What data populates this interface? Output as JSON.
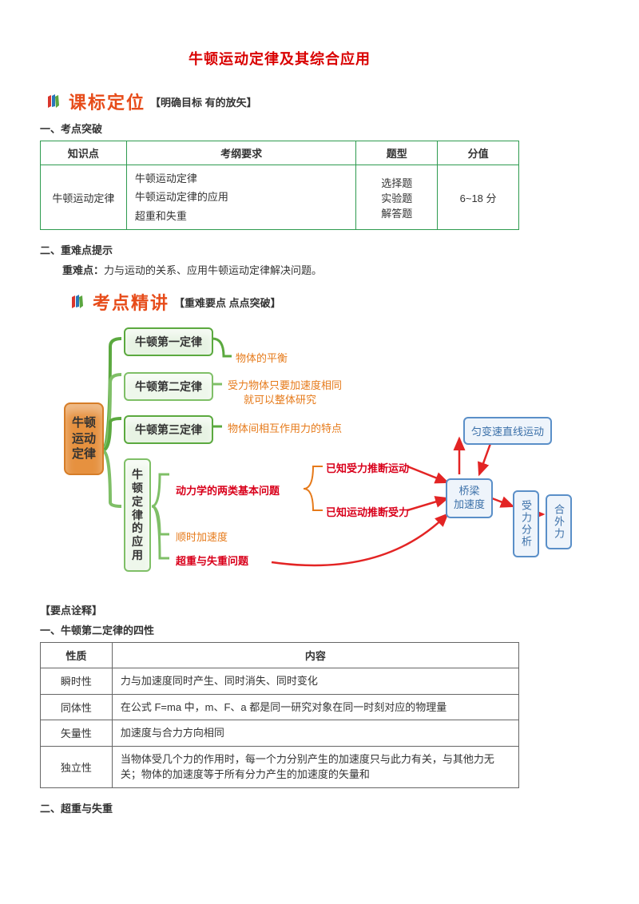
{
  "title": "牛顿运动定律及其综合应用",
  "banner1": {
    "text": "课标定位",
    "sub": "【明确目标 有的放矢】"
  },
  "sec1": {
    "h1": "一、考点突破",
    "headers": [
      "知识点",
      "考纲要求",
      "题型",
      "分值"
    ],
    "row": {
      "c1": "牛顿运动定律",
      "c2_lines": [
        "牛顿运动定律",
        "牛顿运动定律的应用",
        "超重和失重"
      ],
      "c3_lines": [
        "选择题",
        "实验题",
        "解答题"
      ],
      "c4": "6~18 分"
    },
    "h2": "二、重难点提示",
    "hint_label": "重难点：",
    "hint_text": "力与运动的关系、应用牛顿运动定律解决问题。"
  },
  "banner2": {
    "text": "考点精讲",
    "sub": "【重难要点 点点突破】"
  },
  "diagram": {
    "root": "牛顿运动定律",
    "n1": "牛顿第一定律",
    "n1_note": "物体的平衡",
    "n2": "牛顿第二定律",
    "n2_note1": "受力物体只要加速度相同",
    "n2_note2": "就可以整体研究",
    "n3": "牛顿第三定律",
    "n3_note": "物体间相互作用力的特点",
    "n4": "牛顿定律的应用",
    "n4_a": "动力学的两类基本问题",
    "n4_a1": "已知受力推断运动",
    "n4_a2": "已知运动推断受力",
    "n4_b": "顺时加速度",
    "n4_c": "超重与失重问题",
    "box1": "匀变速直线运动",
    "box2_l1": "桥梁",
    "box2_l2": "加速度",
    "box3": "受力分析",
    "box4": "合外力"
  },
  "sec2": {
    "h1": "【要点诠释】",
    "h2": "一、牛顿第二定律的四性",
    "headers": [
      "性质",
      "内容"
    ],
    "rows": [
      {
        "c1": "瞬时性",
        "c2": "力与加速度同时产生、同时消失、同时变化"
      },
      {
        "c1": "同体性",
        "c2": "在公式 F=ma 中，m、F、a 都是同一研究对象在同一时刻对应的物理量"
      },
      {
        "c1": "矢量性",
        "c2": "加速度与合力方向相同"
      },
      {
        "c1": "独立性",
        "c2": "当物体受几个力的作用时，每一个力分别产生的加速度只与此力有关，与其他力无关；物体的加速度等于所有分力产生的加速度的矢量和"
      }
    ],
    "h3": "二、超重与失重"
  },
  "colors": {
    "title": "#d90000",
    "banner": "#e74c1a",
    "table1_border": "#2e9b4f",
    "node_border": "#5ba93f",
    "orange_text": "#e67a1a",
    "red_text": "#d9001b",
    "blue_border": "#5a8fc8",
    "arrow_red": "#e32424"
  }
}
